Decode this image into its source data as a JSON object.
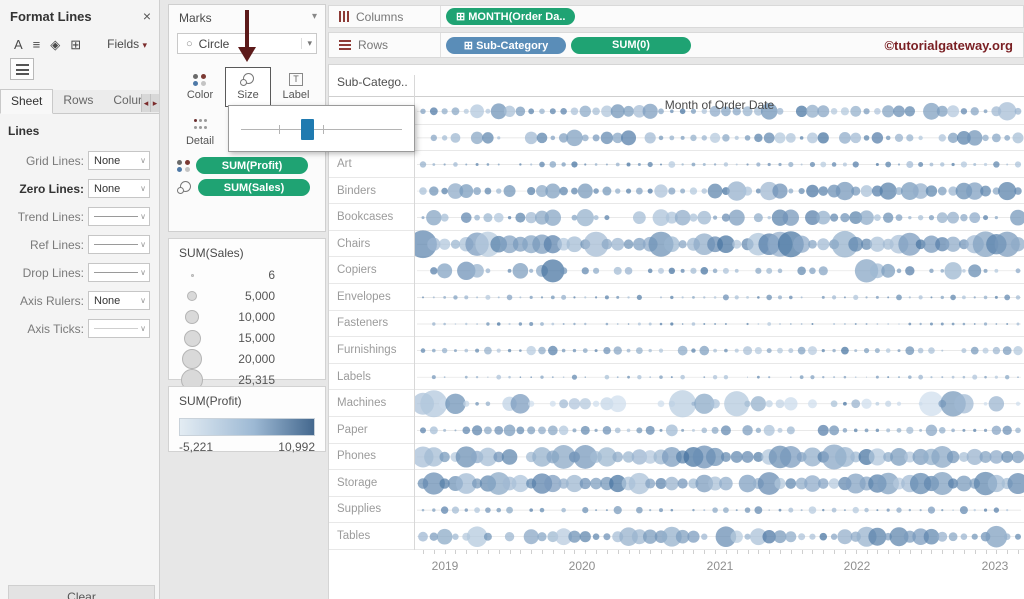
{
  "icons": {
    "close": "×",
    "caret_down": "▾",
    "select_caret": "∨",
    "scroll_left": "◂",
    "scroll_right": "▸",
    "grid_plus": "⊞",
    "circle_glyph": "○",
    "font_a": "A",
    "align_icon": "≡",
    "bucket_icon": "◈",
    "grid_icon": "⊞",
    "copyright": "©"
  },
  "format_panel": {
    "title": "Format Lines",
    "fields_button": "Fields",
    "tabs": [
      {
        "label": "Sheet",
        "active": true
      },
      {
        "label": "Rows",
        "active": false
      },
      {
        "label": "Colur",
        "active": false
      }
    ],
    "section_title": "Lines",
    "fields": [
      {
        "label": "Grid Lines:",
        "value": "None",
        "style": "text",
        "bold": false
      },
      {
        "label": "Zero Lines:",
        "value": "None",
        "style": "text",
        "bold": true
      },
      {
        "label": "Trend Lines:",
        "value": "",
        "style": "line",
        "bold": false
      },
      {
        "label": "Ref Lines:",
        "value": "",
        "style": "line",
        "bold": false
      },
      {
        "label": "Drop Lines:",
        "value": "",
        "style": "line",
        "bold": false
      },
      {
        "label": "Axis Rulers:",
        "value": "None",
        "style": "text",
        "bold": false
      },
      {
        "label": "Axis Ticks:",
        "value": "",
        "style": "line-faint",
        "bold": false
      }
    ],
    "clear_button": "Clear"
  },
  "marks_card": {
    "title": "Marks",
    "mark_type": "Circle",
    "buttons": [
      {
        "label": "Color",
        "selected": false
      },
      {
        "label": "Size",
        "selected": true
      },
      {
        "label": "Label",
        "selected": false
      },
      {
        "label": "Detail",
        "selected": false
      }
    ],
    "pills": [
      {
        "label": "SUM(Profit)",
        "icon": "color-icon"
      },
      {
        "label": "SUM(Sales)",
        "icon": "size-icon"
      }
    ]
  },
  "size_legend": {
    "title": "SUM(Sales)",
    "items": [
      {
        "value": "6",
        "diameter": 3
      },
      {
        "value": "5,000",
        "diameter": 10
      },
      {
        "value": "10,000",
        "diameter": 14
      },
      {
        "value": "15,000",
        "diameter": 17
      },
      {
        "value": "20,000",
        "diameter": 20
      },
      {
        "value": "25,315",
        "diameter": 22
      }
    ]
  },
  "color_legend": {
    "title": "SUM(Profit)",
    "min": "-5,221",
    "max": "10,992"
  },
  "shelves": {
    "columns_label": "Columns",
    "columns_pills": [
      {
        "label": "MONTH(Order Da..",
        "color": "green",
        "prefix": "⊞"
      }
    ],
    "rows_label": "Rows",
    "rows_pills": [
      {
        "label": "Sub-Category",
        "color": "blue",
        "prefix": "⊞"
      },
      {
        "label": "SUM(0)",
        "color": "green",
        "prefix": ""
      }
    ],
    "watermark": "©tutorialgateway.org"
  },
  "chart_data": {
    "type": "scatter",
    "title": "",
    "column_header": "Sub-Catego..",
    "xlabel": "Month of Order Date",
    "x_ticks": [
      "2019",
      "2020",
      "2021",
      "2022",
      "2023"
    ],
    "x_tick_positions": [
      30,
      167,
      305,
      442,
      580
    ],
    "months": 56,
    "note": "Bubble chart: circle size = SUM(Sales) [6 – 25,315], color = SUM(Profit) [-5,221 – 10,992]; first two row labels hidden behind size-slider popup",
    "color_range": [
      "#cfdeed",
      "#44719f"
    ],
    "rows": [
      {
        "label": "",
        "r": [
          2.5,
          9.5
        ],
        "density": 0.93,
        "seed": 101,
        "light": false
      },
      {
        "label": "",
        "r": [
          2.0,
          8.5
        ],
        "density": 0.88,
        "seed": 202,
        "light": false
      },
      {
        "label": "Art",
        "r": [
          1.0,
          3.5
        ],
        "density": 0.88,
        "seed": 303,
        "light": false
      },
      {
        "label": "Binders",
        "r": [
          2.5,
          10.0
        ],
        "density": 0.95,
        "seed": 404,
        "light": false
      },
      {
        "label": "Bookcases",
        "r": [
          2.5,
          9.0
        ],
        "density": 0.82,
        "seed": 505,
        "light": false
      },
      {
        "label": "Chairs",
        "r": [
          4.0,
          14.0
        ],
        "density": 0.96,
        "seed": 606,
        "light": false
      },
      {
        "label": "Copiers",
        "r": [
          3.0,
          13.0
        ],
        "density": 0.5,
        "seed": 707,
        "light": false
      },
      {
        "label": "Envelopes",
        "r": [
          1.0,
          3.0
        ],
        "density": 0.85,
        "seed": 808,
        "light": false
      },
      {
        "label": "Fasteners",
        "r": [
          0.8,
          2.0
        ],
        "density": 0.88,
        "seed": 909,
        "light": false
      },
      {
        "label": "Furnishings",
        "r": [
          1.5,
          5.0
        ],
        "density": 0.92,
        "seed": 1010,
        "light": false
      },
      {
        "label": "Labels",
        "r": [
          0.8,
          2.6
        ],
        "density": 0.85,
        "seed": 1111,
        "light": false
      },
      {
        "label": "Machines",
        "r": [
          3.0,
          14.0
        ],
        "density": 0.6,
        "seed": 1212,
        "light": true
      },
      {
        "label": "Paper",
        "r": [
          1.5,
          6.0
        ],
        "density": 0.95,
        "seed": 1313,
        "light": false
      },
      {
        "label": "Phones",
        "r": [
          5.0,
          13.0
        ],
        "density": 0.97,
        "seed": 1414,
        "light": false
      },
      {
        "label": "Storage",
        "r": [
          5.0,
          12.0
        ],
        "density": 0.97,
        "seed": 1515,
        "light": false
      },
      {
        "label": "Supplies",
        "r": [
          1.0,
          4.5
        ],
        "density": 0.8,
        "seed": 1616,
        "light": false
      },
      {
        "label": "Tables",
        "r": [
          3.0,
          11.0
        ],
        "density": 0.9,
        "seed": 1717,
        "light": false
      }
    ]
  }
}
